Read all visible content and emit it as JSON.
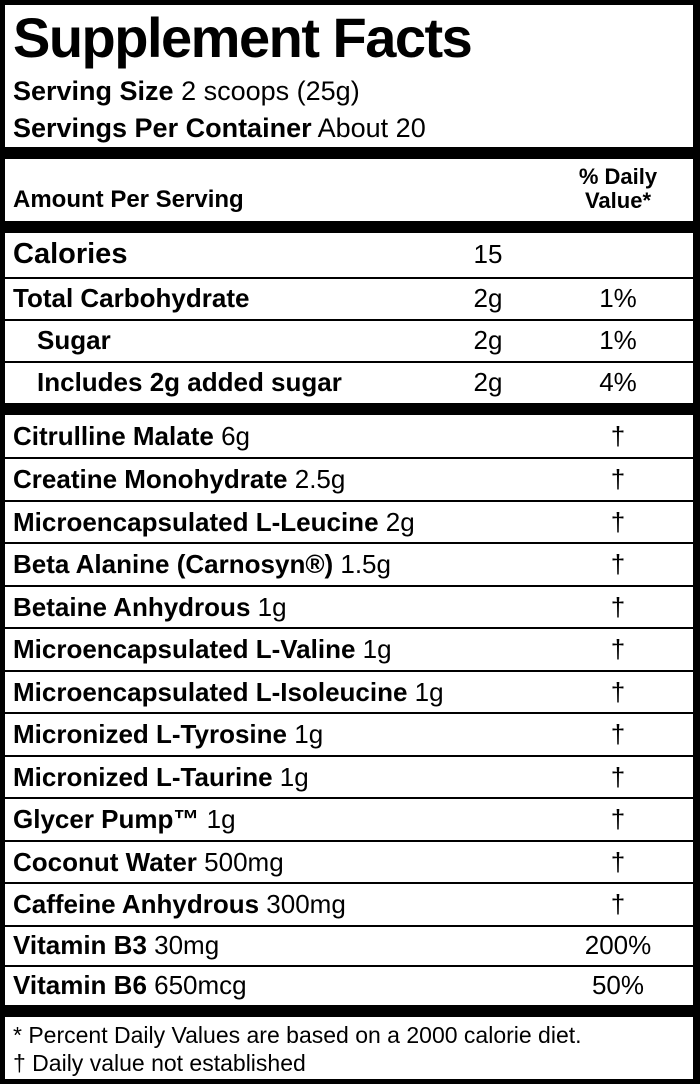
{
  "header": {
    "title": "Supplement Facts",
    "serving_size_label": "Serving Size",
    "serving_size_value": "2 scoops (25g)",
    "servings_per_container_label": "Servings Per Container",
    "servings_per_container_value": "About 20"
  },
  "columns": {
    "amount_per_serving": "Amount Per Serving",
    "daily_value_line1": "% Daily",
    "daily_value_line2": "Value*"
  },
  "nutrients": [
    {
      "name": "Calories",
      "amount": "15",
      "dv": ""
    },
    {
      "name": "Total Carbohydrate",
      "amount": "2g",
      "dv": "1%"
    },
    {
      "name": "Sugar",
      "amount": "2g",
      "dv": "1%"
    },
    {
      "name": "Includes 2g added sugar",
      "amount": "2g",
      "dv": "4%"
    }
  ],
  "ingredients": [
    {
      "name": "Citrulline Malate",
      "amount": "6g",
      "dv": "†"
    },
    {
      "name": "Creatine Monohydrate",
      "amount": "2.5g",
      "dv": "†"
    },
    {
      "name": "Microencapsulated L-Leucine",
      "amount": "2g",
      "dv": "†"
    },
    {
      "name": "Beta Alanine (Carnosyn®)",
      "amount": "1.5g",
      "dv": "†"
    },
    {
      "name": "Betaine Anhydrous",
      "amount": "1g",
      "dv": "†"
    },
    {
      "name": "Microencapsulated L-Valine",
      "amount": "1g",
      "dv": "†"
    },
    {
      "name": "Microencapsulated L-Isoleucine",
      "amount": "1g",
      "dv": "†"
    },
    {
      "name": "Micronized L-Tyrosine",
      "amount": "1g",
      "dv": "†"
    },
    {
      "name": "Micronized L-Taurine",
      "amount": "1g",
      "dv": "†"
    },
    {
      "name": "Glycer Pump™",
      "amount": "1g",
      "dv": "†"
    },
    {
      "name": "Coconut Water",
      "amount": "500mg",
      "dv": "†"
    },
    {
      "name": "Caffeine Anhydrous",
      "amount": "300mg",
      "dv": "†"
    }
  ],
  "vitamins": [
    {
      "name": "Vitamin B3",
      "amount": "30mg",
      "dv": "200%"
    },
    {
      "name": "Vitamin B6",
      "amount": "650mcg",
      "dv": "50%"
    }
  ],
  "footnotes": [
    "* Percent Daily Values are based on a 2000 calorie diet.",
    "† Daily value not established"
  ],
  "colors": {
    "text": "#000000",
    "background": "#ffffff",
    "border": "#000000"
  }
}
